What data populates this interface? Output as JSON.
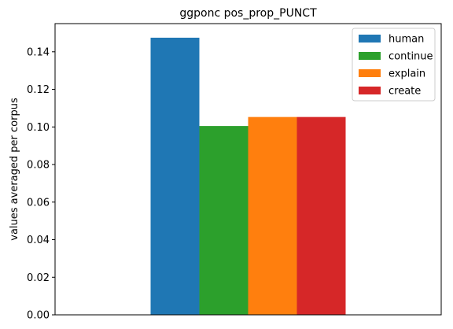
{
  "chart_data": {
    "type": "bar",
    "title": "ggponc pos_prop_PUNCT",
    "xlabel": "",
    "ylabel": "values averaged per corpus",
    "ylim": [
      0,
      0.155
    ],
    "yticks": [
      "0.00",
      "0.02",
      "0.04",
      "0.06",
      "0.08",
      "0.10",
      "0.12",
      "0.14"
    ],
    "categories": [
      ""
    ],
    "series": [
      {
        "name": "human",
        "values": [
          0.1475
        ],
        "color": "#1f77b4"
      },
      {
        "name": "continue",
        "values": [
          0.1005
        ],
        "color": "#2ca02c"
      },
      {
        "name": "explain",
        "values": [
          0.1053
        ],
        "color": "#ff7f0e"
      },
      {
        "name": "create",
        "values": [
          0.1053
        ],
        "color": "#d62728"
      }
    ],
    "legend_position": "top-right",
    "grid": false
  }
}
